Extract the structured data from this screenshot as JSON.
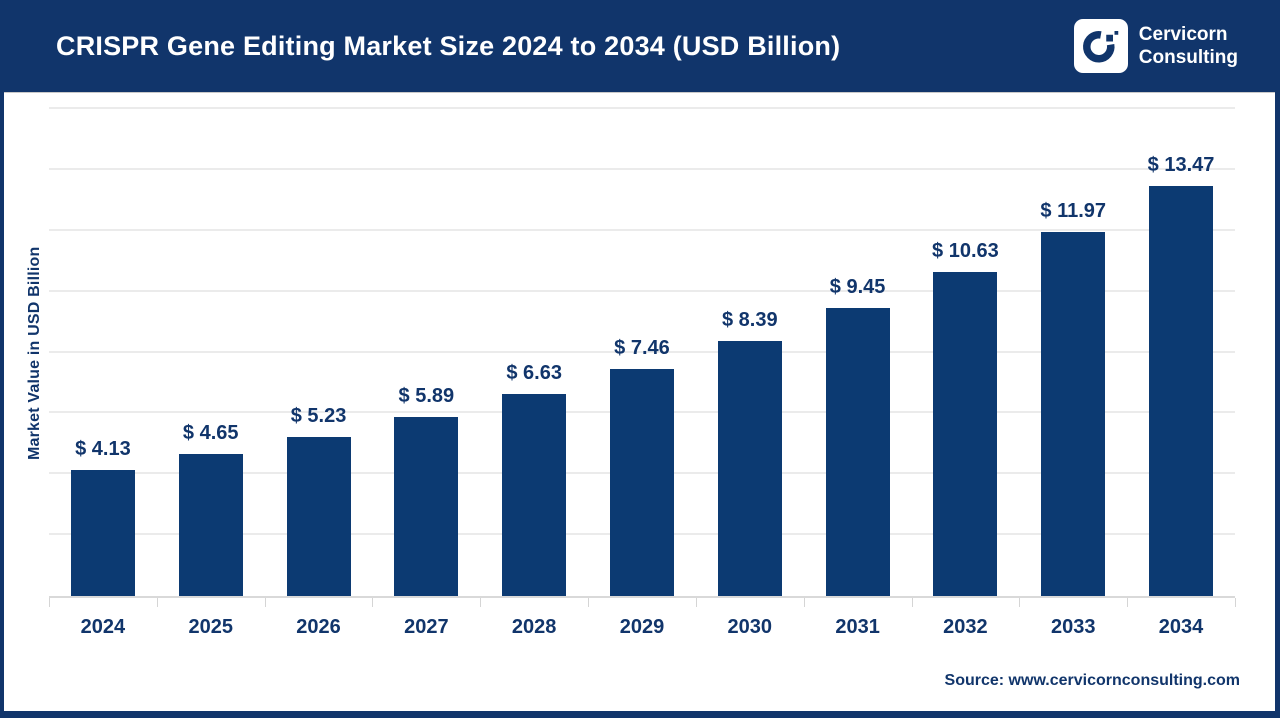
{
  "header": {
    "title": "CRISPR Gene Editing Market Size 2024 to 2034 (USD Billion)",
    "brand_line1": "Cervicorn",
    "brand_line2": "Consulting"
  },
  "chart_data": {
    "type": "bar",
    "title": "CRISPR Gene Editing Market Size 2024 to 2034 (USD Billion)",
    "categories": [
      "2024",
      "2025",
      "2026",
      "2027",
      "2028",
      "2029",
      "2030",
      "2031",
      "2032",
      "2033",
      "2034"
    ],
    "values": [
      4.13,
      4.65,
      5.23,
      5.89,
      6.63,
      7.46,
      8.39,
      9.45,
      10.63,
      11.97,
      13.47
    ],
    "value_prefix": "$ ",
    "xlabel": "",
    "ylabel": "Market Value in USD Billion",
    "ylim": [
      0,
      16
    ],
    "grid_step": 2,
    "grid": true,
    "legend": false,
    "bar_color": "#0c3a72",
    "label_color": "#11356b"
  },
  "footer": {
    "source": "Source: www.cervicornconsulting.com"
  },
  "colors": {
    "navy": "#11356b",
    "header_bg": "#11356b",
    "gridline": "#ebebeb",
    "axis_line": "#d9d9d9",
    "background": "#ffffff"
  }
}
